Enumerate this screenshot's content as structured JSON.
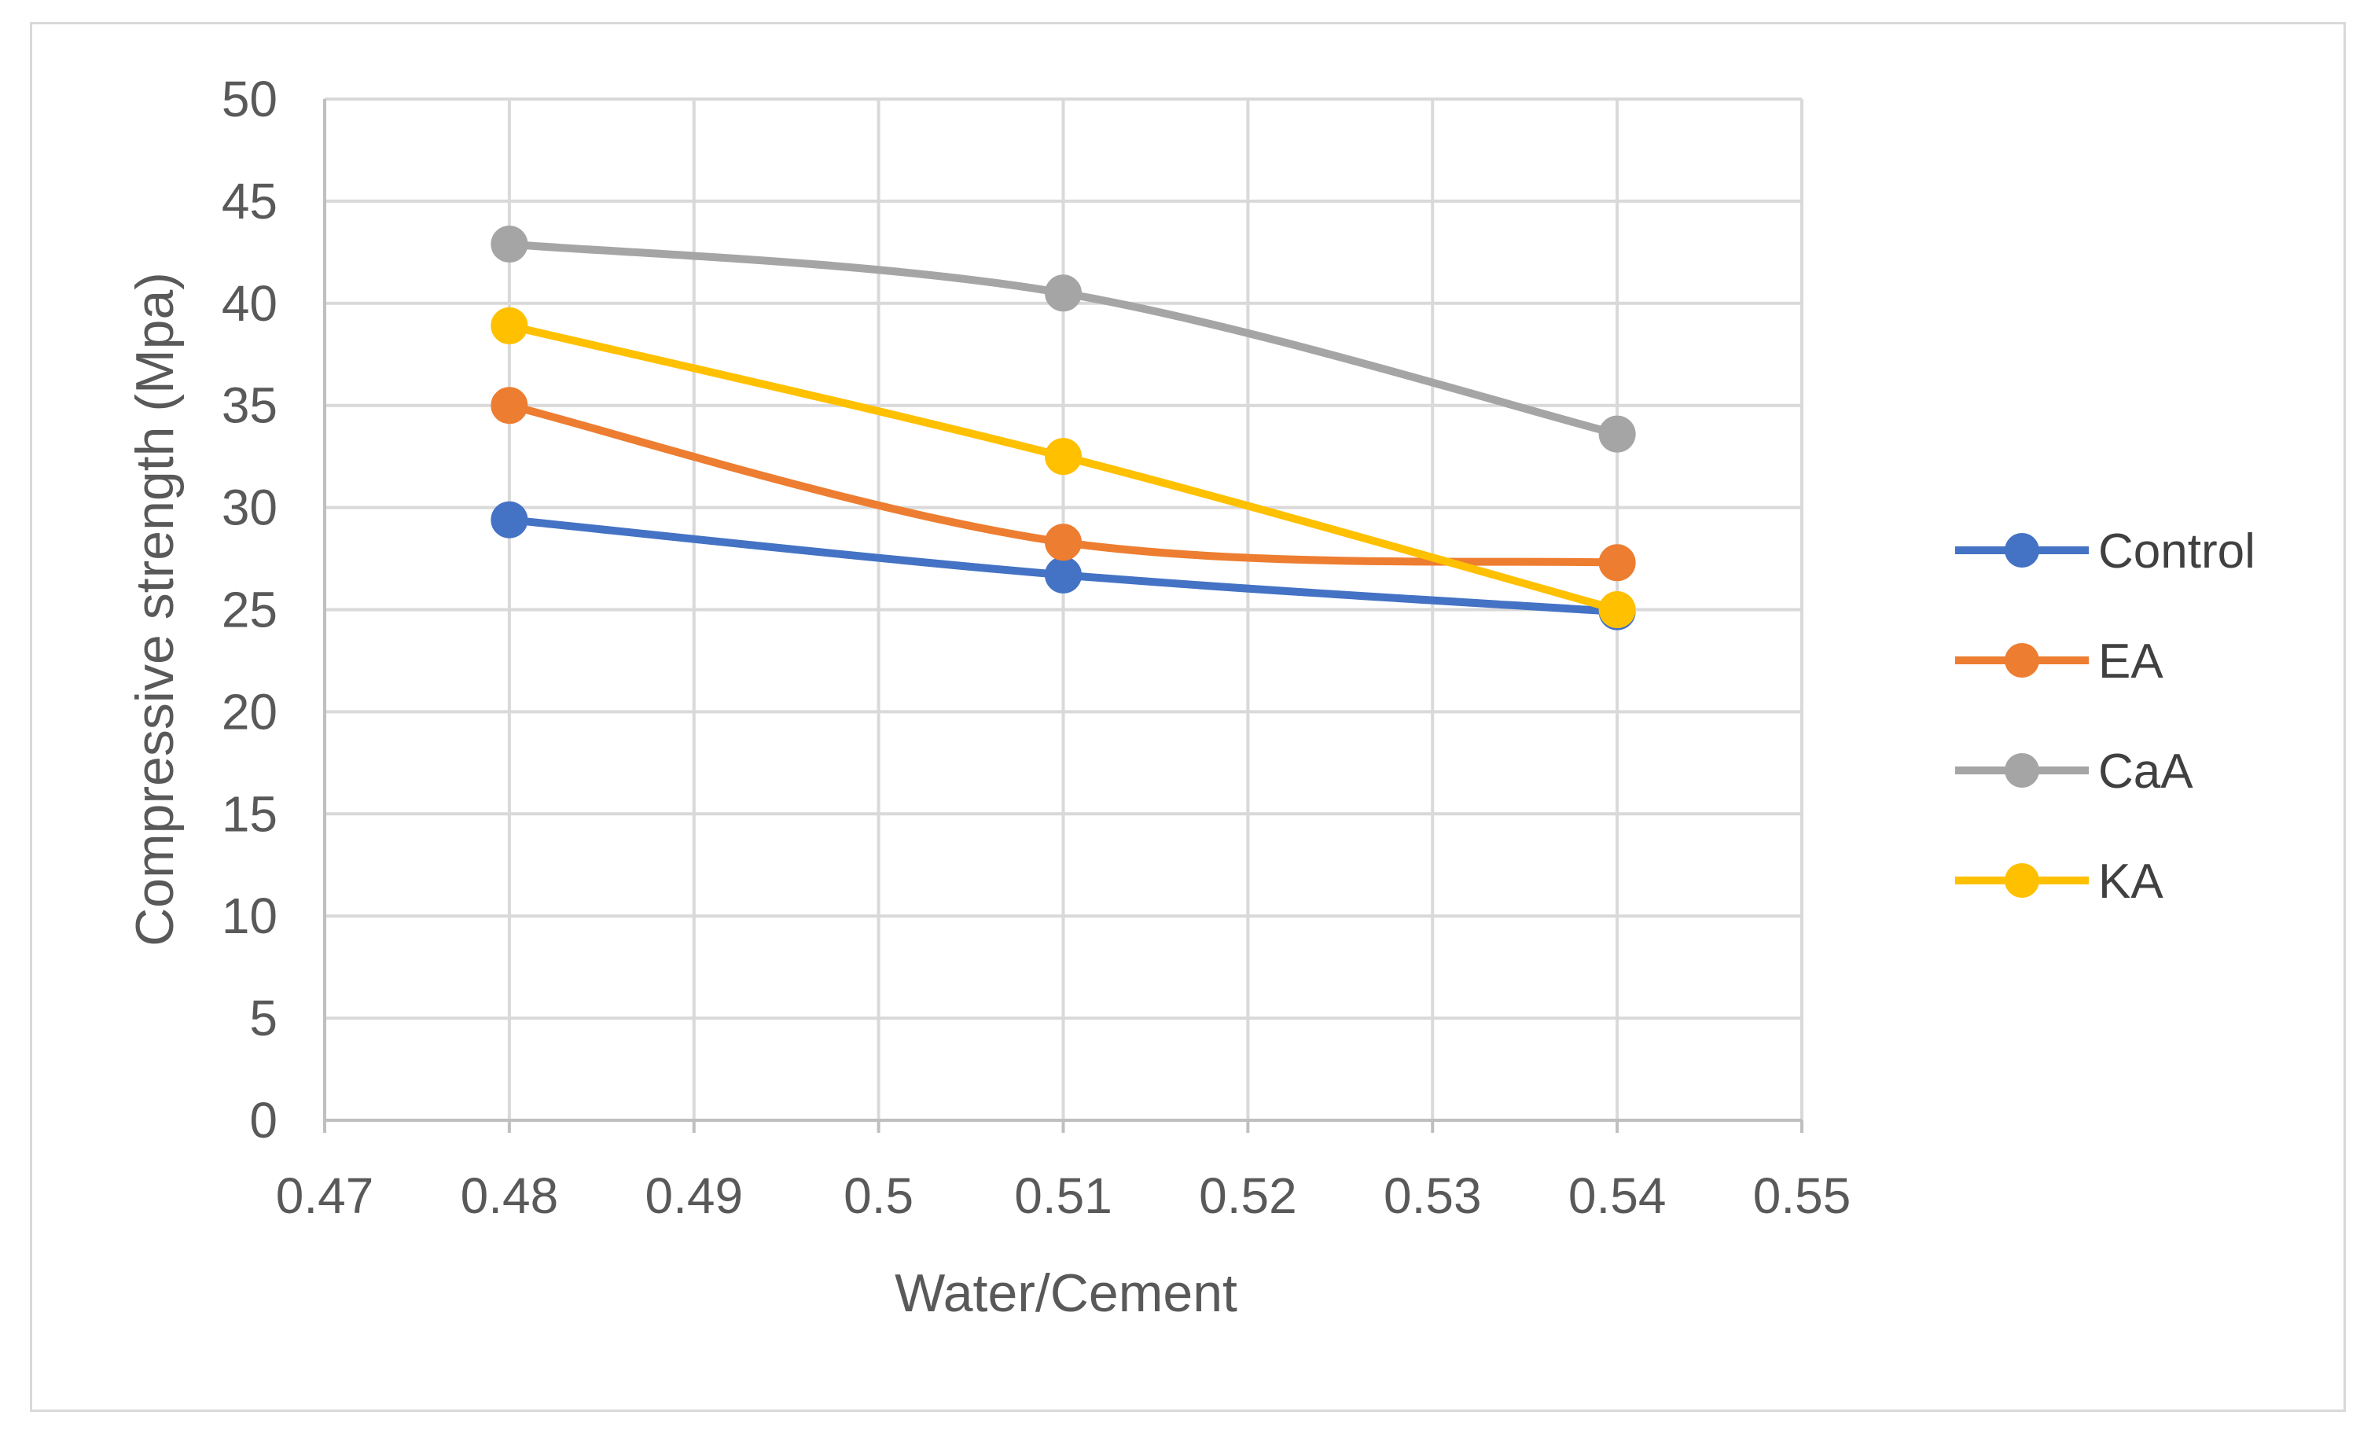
{
  "chart_data": {
    "type": "line",
    "title": "",
    "xlabel": "Water/Cement",
    "ylabel": "Compressive strength (Mpa)",
    "xlim": [
      0.47,
      0.55
    ],
    "ylim": [
      0,
      50
    ],
    "x_ticks": [
      0.47,
      0.48,
      0.49,
      0.5,
      0.51,
      0.52,
      0.53,
      0.54,
      0.55
    ],
    "x_tick_labels": [
      "0.47",
      "0.48",
      "0.49",
      "0.5",
      "0.51",
      "0.52",
      "0.53",
      "0.54",
      "0.55"
    ],
    "y_ticks": [
      0,
      5,
      10,
      15,
      20,
      25,
      30,
      35,
      40,
      45,
      50
    ],
    "y_tick_labels": [
      "0",
      "5",
      "10",
      "15",
      "20",
      "25",
      "30",
      "35",
      "40",
      "45",
      "50"
    ],
    "grid": true,
    "legend_position": "right",
    "x": [
      0.48,
      0.51,
      0.54
    ],
    "series": [
      {
        "name": "Control",
        "color": "#4472C4",
        "values": [
          29.4,
          26.7,
          24.9
        ]
      },
      {
        "name": "EA",
        "color": "#ED7D31",
        "values": [
          35.0,
          28.3,
          27.3
        ]
      },
      {
        "name": "CaA",
        "color": "#A5A5A5",
        "values": [
          42.9,
          40.5,
          33.6
        ]
      },
      {
        "name": "KA",
        "color": "#FFC000",
        "values": [
          38.9,
          32.5,
          25.0
        ]
      }
    ]
  }
}
